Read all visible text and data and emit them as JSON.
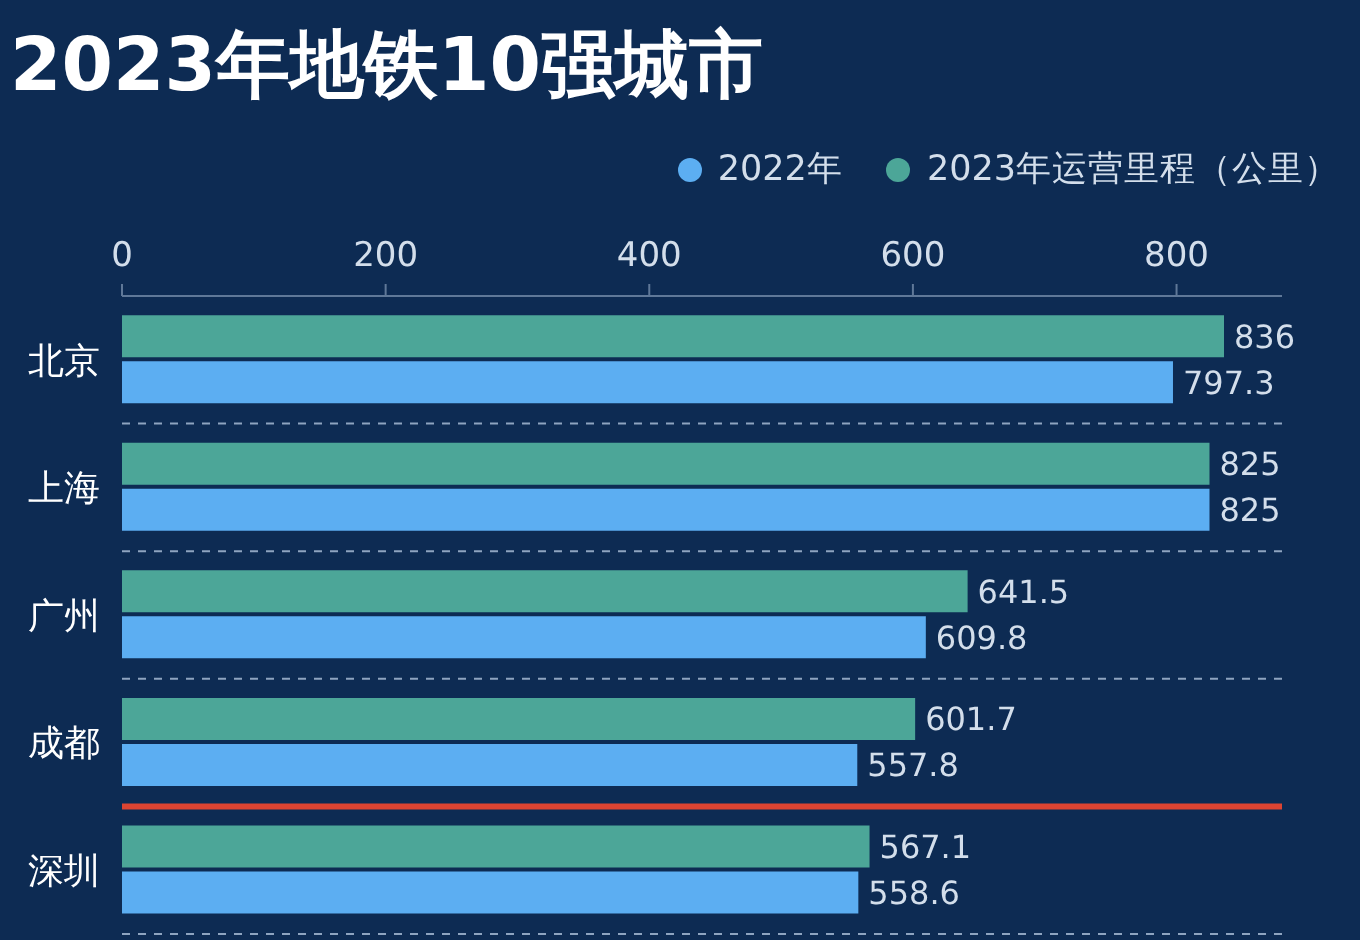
{
  "chart_data": {
    "type": "bar",
    "title": "2023年地铁10强城市",
    "orientation": "horizontal",
    "categories": [
      "北京",
      "上海",
      "广州",
      "成都",
      "深圳"
    ],
    "series": [
      {
        "name": "2022年",
        "color": "#5caef2",
        "values": [
          797.3,
          825,
          609.8,
          557.8,
          558.6
        ]
      },
      {
        "name": "2023年运营里程（公里）",
        "color": "#4ca698",
        "values": [
          836,
          825,
          641.5,
          601.7,
          567.1
        ]
      }
    ],
    "xlim": [
      0,
      880
    ],
    "xticks": [
      0,
      200,
      400,
      600,
      800
    ],
    "grid": "y",
    "legend": "top right",
    "data_labels": true,
    "ref_lines": [
      {
        "axis": "y",
        "value": "深圳",
        "color": "#dc4432"
      }
    ]
  }
}
